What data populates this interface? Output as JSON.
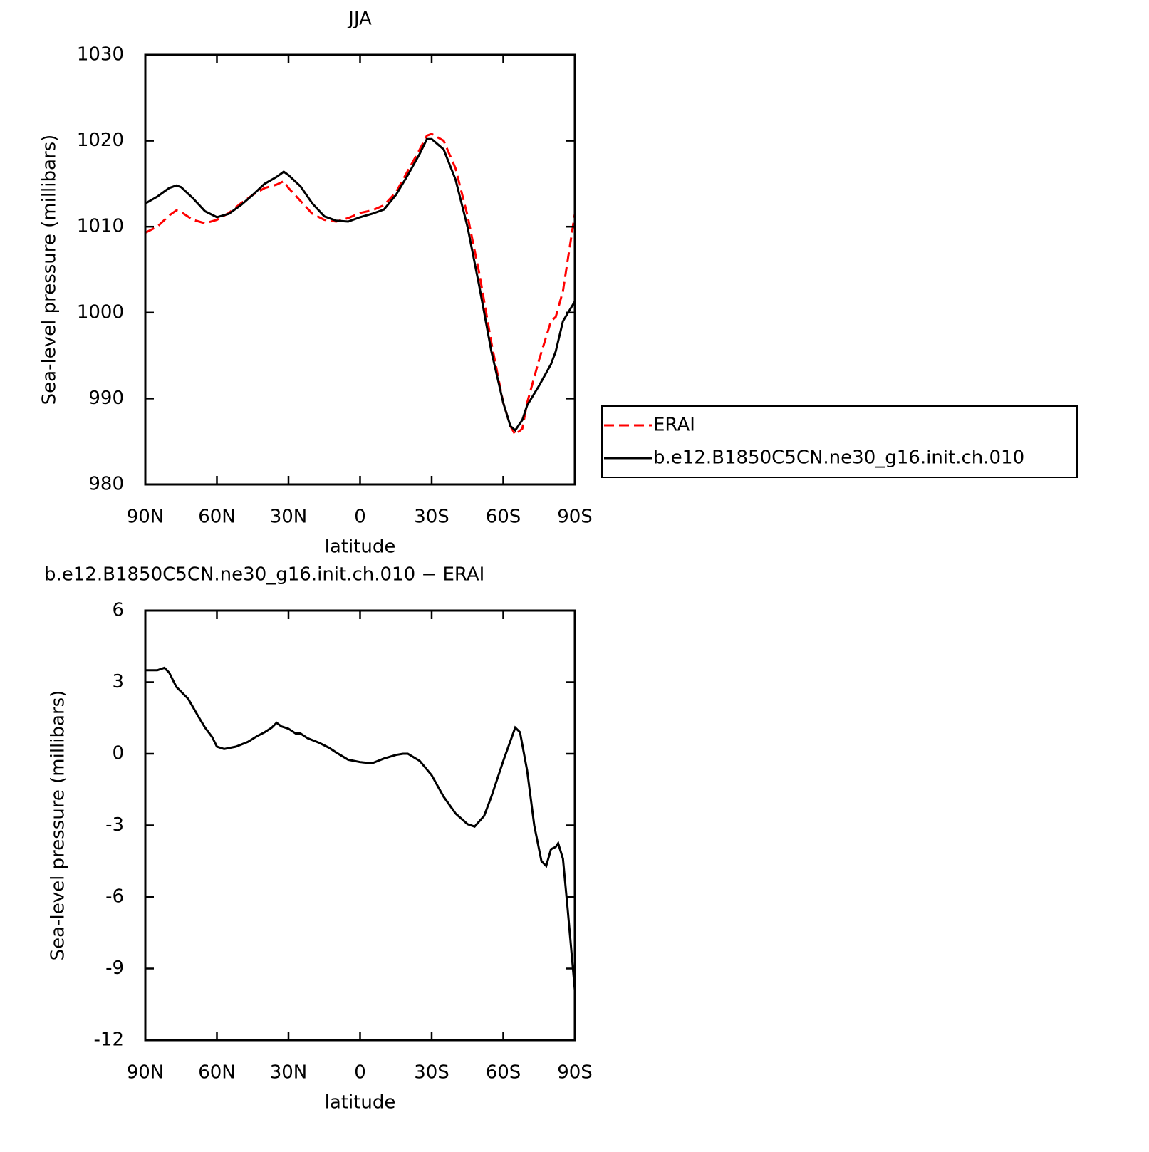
{
  "chart_data": [
    {
      "type": "line",
      "title": "JJA",
      "xlabel": "latitude",
      "ylabel": "Sea-level pressure (millibars)",
      "x": [
        90,
        85,
        80,
        77,
        75,
        70,
        65,
        60,
        55,
        50,
        45,
        40,
        35,
        32,
        30,
        25,
        20,
        15,
        10,
        5,
        0,
        -5,
        -10,
        -15,
        -20,
        -25,
        -28,
        -30,
        -35,
        -40,
        -45,
        -50,
        -55,
        -60,
        -63,
        -65,
        -68,
        -70,
        -75,
        -80,
        -82,
        -85,
        -90
      ],
      "series": [
        {
          "name": "ERAI",
          "color": "#ff0000",
          "dash": true,
          "values": [
            1009.3,
            1010,
            1011.3,
            1011.9,
            1011.7,
            1010.8,
            1010.4,
            1010.8,
            1011.6,
            1012.7,
            1013.7,
            1014.5,
            1014.9,
            1015.3,
            1014.5,
            1013,
            1011.5,
            1010.8,
            1010.6,
            1011,
            1011.6,
            1011.9,
            1012.5,
            1014,
            1016.5,
            1019,
            1020.6,
            1020.8,
            1020,
            1016.8,
            1011.3,
            1004.5,
            996.5,
            989.5,
            986.8,
            985.8,
            986.5,
            989.5,
            994.5,
            999,
            999.5,
            1002.5,
            1011.5
          ]
        },
        {
          "name": "b.e12.B1850C5CN.ne30_g16.init.ch.010",
          "color": "#000000",
          "dash": false,
          "values": [
            1012.7,
            1013.5,
            1014.5,
            1014.8,
            1014.6,
            1013.3,
            1011.8,
            1011.1,
            1011.5,
            1012.5,
            1013.7,
            1015,
            1015.8,
            1016.4,
            1016,
            1014.7,
            1012.7,
            1011.2,
            1010.7,
            1010.6,
            1011.1,
            1011.5,
            1012,
            1013.7,
            1016,
            1018.5,
            1020.2,
            1020.2,
            1019,
            1015.5,
            1010,
            1003,
            995.5,
            989.5,
            986.8,
            986.3,
            987.5,
            989.2,
            991.5,
            994,
            995.5,
            999,
            1001.3
          ]
        }
      ],
      "xlim": [
        90,
        -90
      ],
      "xticks": [
        {
          "value": 90,
          "label": "90N"
        },
        {
          "value": 60,
          "label": "60N"
        },
        {
          "value": 30,
          "label": "30N"
        },
        0,
        {
          "value": -30,
          "label": "30S"
        },
        {
          "value": -60,
          "label": "60S"
        },
        {
          "value": -90,
          "label": "90S"
        }
      ],
      "ylim": [
        980,
        1030
      ],
      "yticks": [
        980,
        990,
        1000,
        1010,
        1020,
        1030
      ],
      "legend": "right"
    },
    {
      "type": "line",
      "title": "b.e12.B1850C5CN.ne30_g16.init.ch.010 − ERAI",
      "xlabel": "latitude",
      "ylabel": "Sea-level pressure (millibars)",
      "x": [
        90,
        85,
        82,
        80,
        77,
        72,
        68,
        65,
        62,
        60,
        57,
        52,
        47,
        43,
        40,
        37,
        35,
        33,
        30,
        27,
        25,
        22,
        17,
        13,
        10,
        5,
        0,
        -5,
        -10,
        -15,
        -18,
        -20,
        -25,
        -30,
        -35,
        -40,
        -45,
        -48,
        -52,
        -55,
        -60,
        -65,
        -67,
        -70,
        -73,
        -76,
        -78,
        -80,
        -82,
        -83,
        -85,
        -87,
        -90
      ],
      "series": [
        {
          "name": "b.e12.B1850C5CN.ne30_g16.init.ch.010 − ERAI",
          "color": "#000000",
          "dash": false,
          "values": [
            3.5,
            3.5,
            3.6,
            3.4,
            2.8,
            2.3,
            1.6,
            1.1,
            0.7,
            0.3,
            0.2,
            0.3,
            0.5,
            0.75,
            0.9,
            1.1,
            1.3,
            1.15,
            1.05,
            0.85,
            0.85,
            0.65,
            0.45,
            0.25,
            0.05,
            -0.25,
            -0.35,
            -0.4,
            -0.2,
            -0.05,
            0,
            0,
            -0.3,
            -0.9,
            -1.8,
            -2.5,
            -2.95,
            -3.05,
            -2.6,
            -1.8,
            -0.3,
            1.1,
            0.9,
            -0.7,
            -3,
            -4.5,
            -4.7,
            -4,
            -3.9,
            -3.75,
            -4.4,
            -6.5,
            -9.9
          ]
        }
      ],
      "xlim": [
        90,
        -90
      ],
      "xticks": [
        {
          "value": 90,
          "label": "90N"
        },
        {
          "value": 60,
          "label": "60N"
        },
        {
          "value": 30,
          "label": "30N"
        },
        0,
        {
          "value": -30,
          "label": "30S"
        },
        {
          "value": -60,
          "label": "60S"
        },
        {
          "value": -90,
          "label": "90S"
        }
      ],
      "ylim": [
        -12,
        6
      ],
      "yticks": [
        -12,
        -9,
        -6,
        -3,
        0,
        3,
        6
      ]
    }
  ]
}
